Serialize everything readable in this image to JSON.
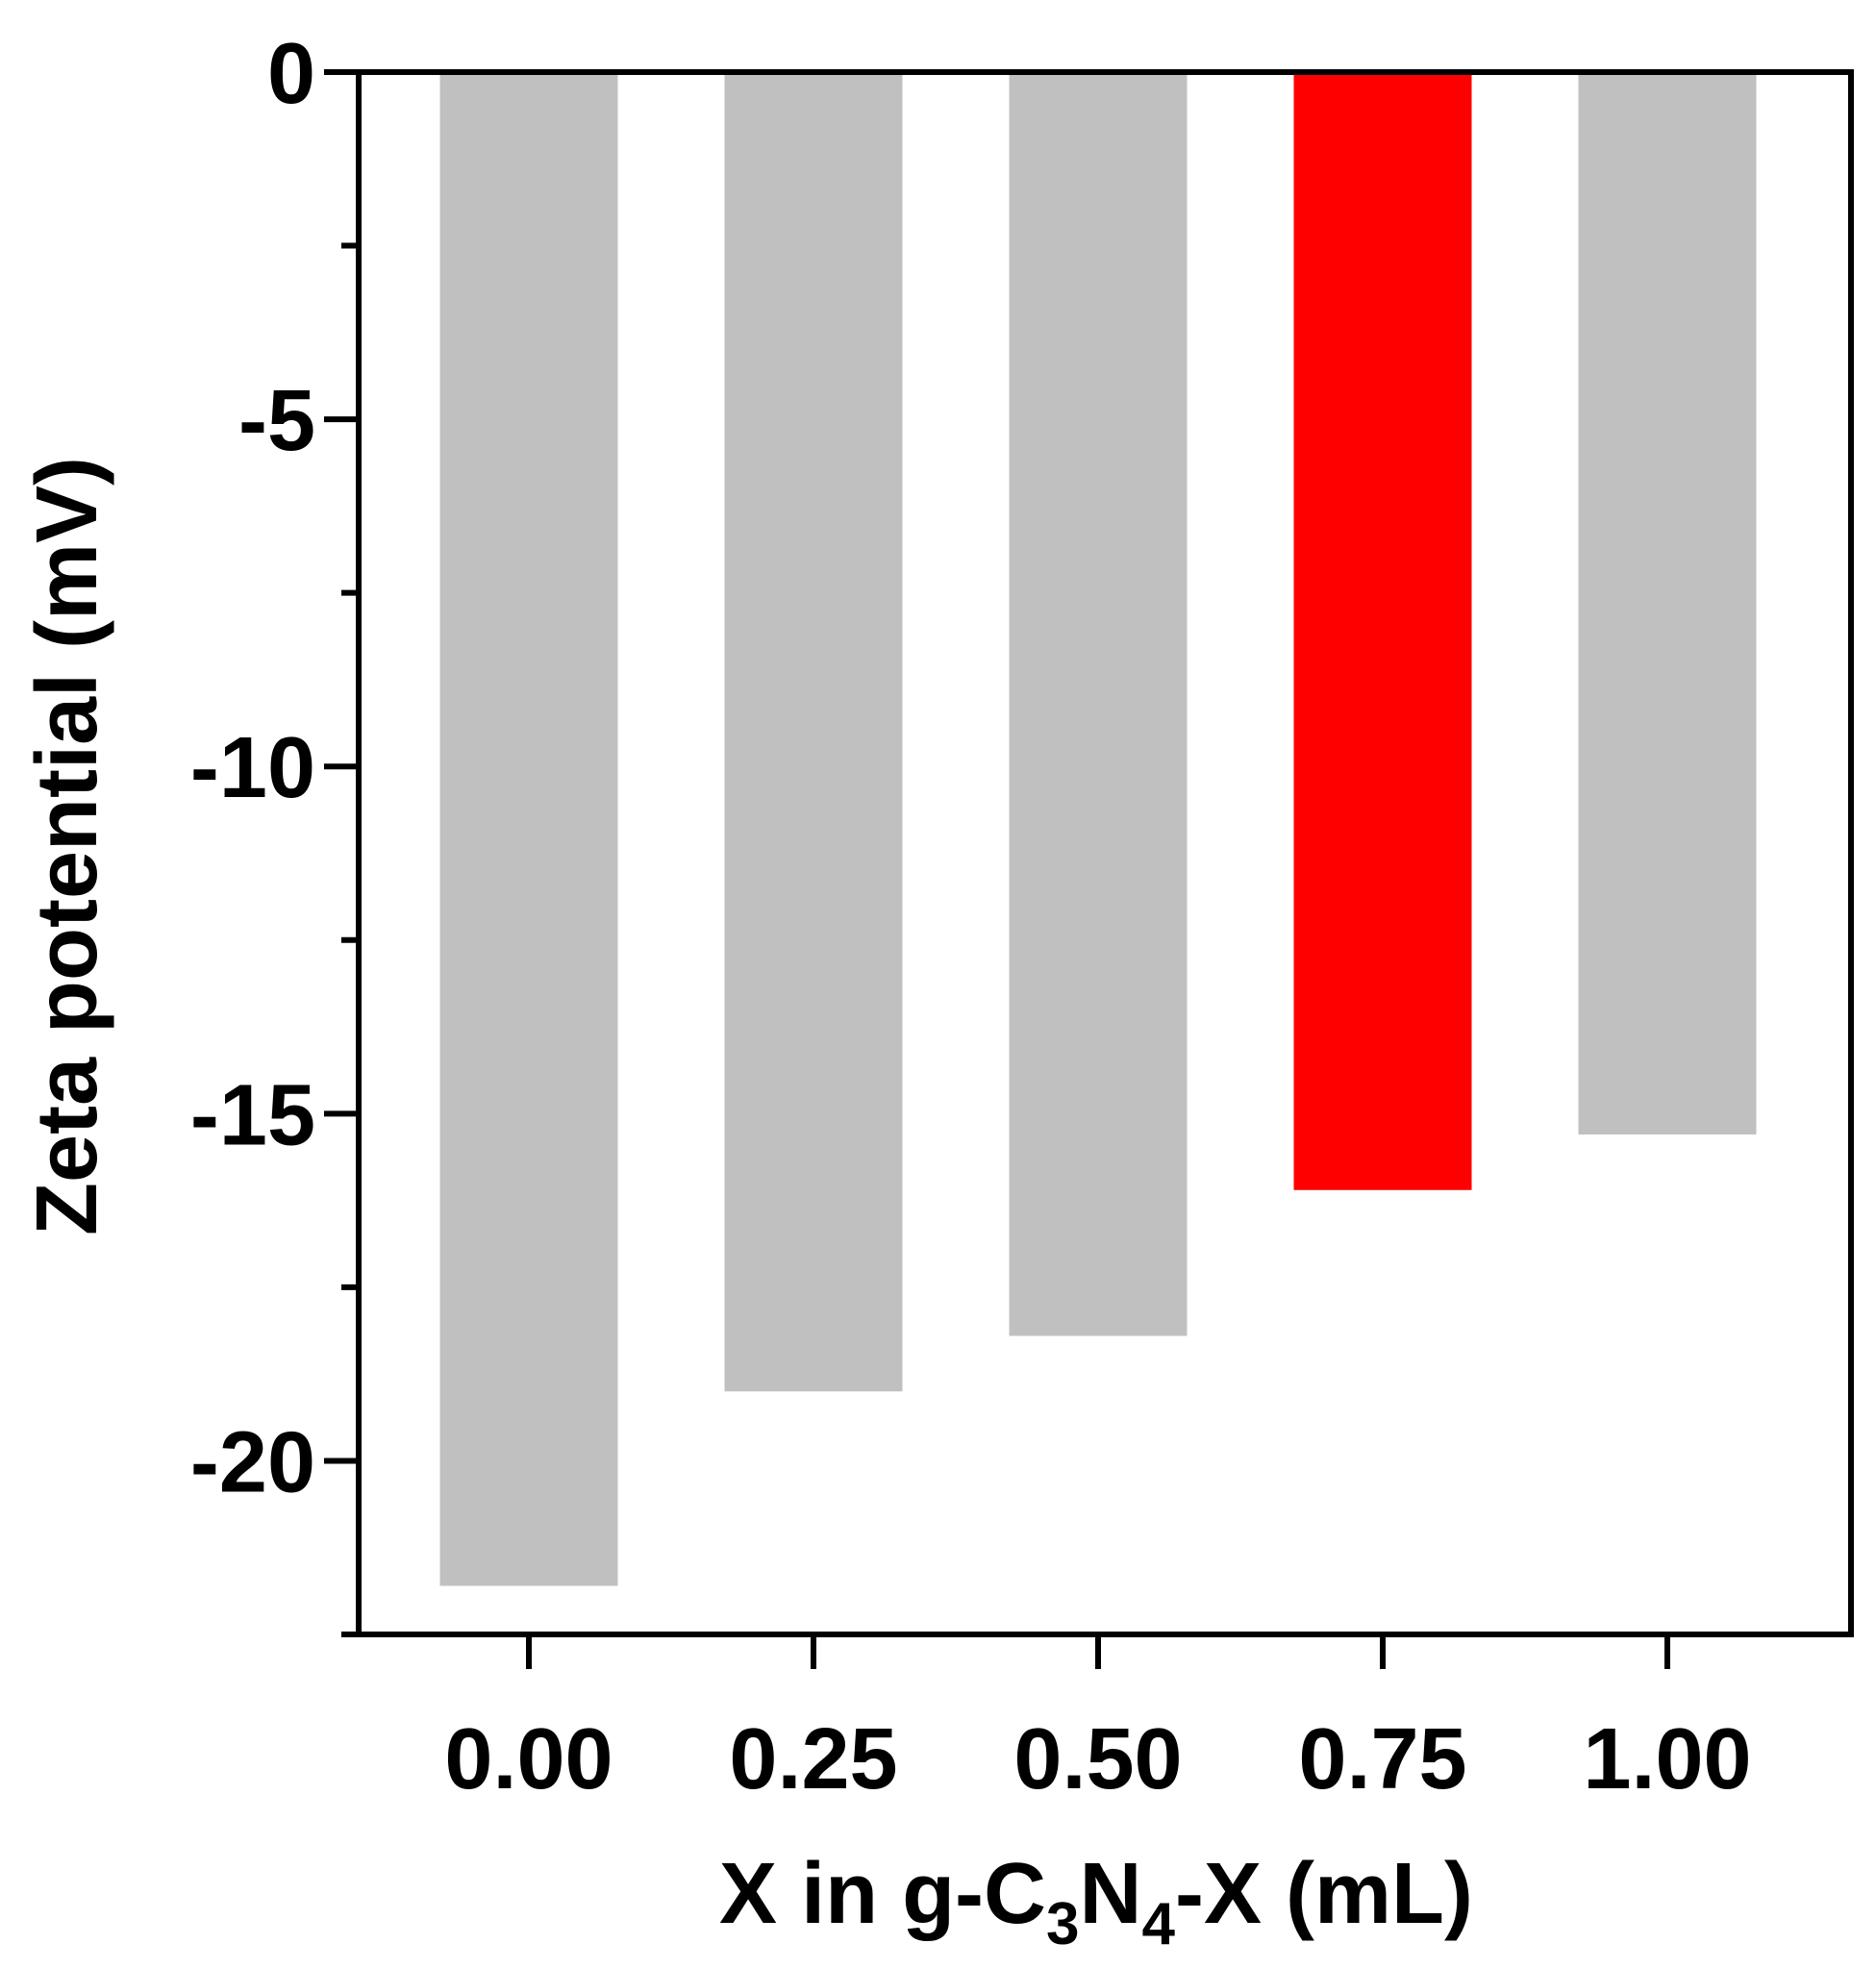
{
  "chart_data": {
    "type": "bar",
    "categories": [
      "0.00",
      "0.25",
      "0.50",
      "0.75",
      "1.00"
    ],
    "values": [
      -21.8,
      -19.0,
      -18.2,
      -16.1,
      -15.3
    ],
    "bar_colors": [
      "#c0c0c0",
      "#c0c0c0",
      "#c0c0c0",
      "#ff0000",
      "#c0c0c0"
    ],
    "ylabel": "Zeta potential (mV)",
    "xlabel": {
      "prefix": "X in g-C",
      "sub1": "3",
      "mid": "N",
      "sub2": "4",
      "suffix": "-X (mL)"
    },
    "ylim": [
      -22.5,
      0
    ],
    "yticks": [
      0,
      -5,
      -10,
      -15,
      -20
    ],
    "ytick_labels": [
      "0",
      "-5",
      "-10",
      "-15",
      "-20"
    ],
    "grid": false,
    "legend": false
  }
}
